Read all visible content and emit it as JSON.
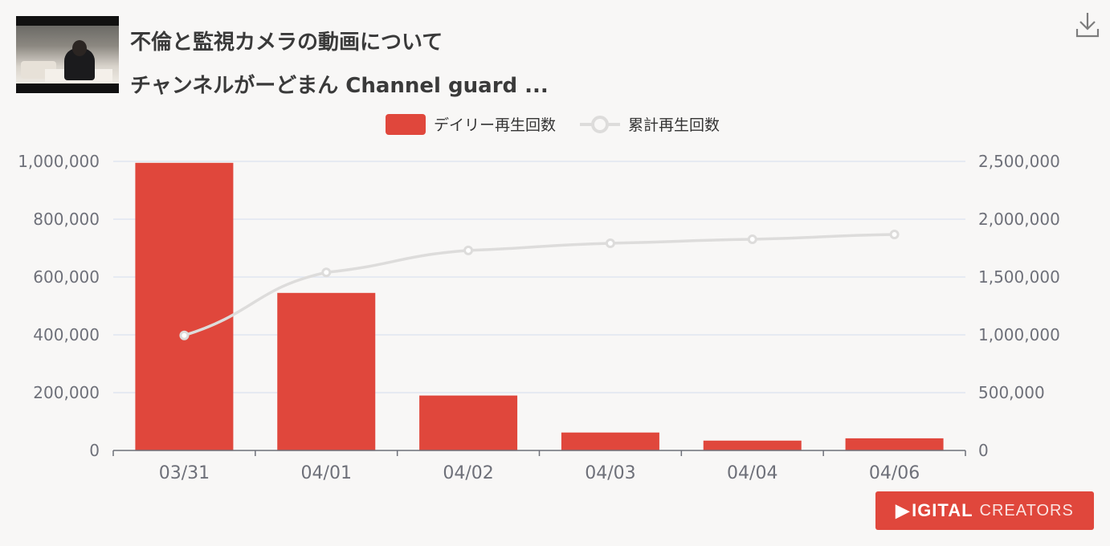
{
  "video": {
    "title_line1": "不倫と監視カメラの動画について",
    "title_line2": "チャンネルがーどまん Channel guard ..."
  },
  "icons": {
    "download": "download-icon"
  },
  "logo": {
    "mark": "▶",
    "word1": "IGITAL",
    "word2": "CREATORS",
    "color": "#e0473c"
  },
  "colors": {
    "bar": "#e0473c",
    "line": "#dddcdb",
    "axis": "#6e7079",
    "grid": "#e0e6f1"
  },
  "chart_data": {
    "type": "bar",
    "categories": [
      "03/31",
      "04/01",
      "04/02",
      "04/03",
      "04/04",
      "04/06"
    ],
    "series": [
      {
        "name": "デイリー再生回数",
        "type": "bar",
        "axis": "left",
        "values": [
          995000,
          545000,
          190000,
          62000,
          34000,
          42000
        ]
      },
      {
        "name": "累計再生回数",
        "type": "line",
        "axis": "right",
        "values": [
          995000,
          1540000,
          1730000,
          1792000,
          1826000,
          1868000
        ]
      }
    ],
    "y_left": {
      "min": 0,
      "max": 1000000,
      "ticks": [
        "0",
        "200,000",
        "400,000",
        "600,000",
        "800,000",
        "1,000,000"
      ]
    },
    "y_right": {
      "min": 0,
      "max": 2500000,
      "ticks": [
        "0",
        "500,000",
        "1,000,000",
        "1,500,000",
        "2,000,000",
        "2,500,000"
      ]
    },
    "grid": true,
    "legend_position": "top-center"
  }
}
